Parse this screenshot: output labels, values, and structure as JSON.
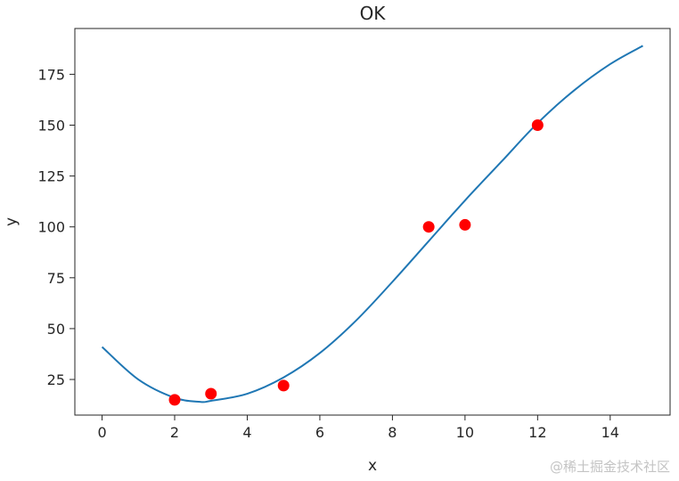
{
  "chart_data": {
    "type": "scatter",
    "title": "OK",
    "xlabel": "x",
    "ylabel": "y",
    "xlim": [
      -0.75,
      15.65
    ],
    "ylim": [
      7.5,
      197.5
    ],
    "xticks": [
      0,
      2,
      4,
      6,
      8,
      10,
      12,
      14
    ],
    "yticks": [
      25,
      50,
      75,
      100,
      125,
      150,
      175
    ],
    "grid": false,
    "series": [
      {
        "kind": "scatter",
        "color": "#ff0000",
        "x": [
          2,
          3,
          5,
          9,
          10,
          12
        ],
        "y": [
          15,
          18,
          22,
          100,
          101,
          150
        ]
      },
      {
        "kind": "line",
        "color": "#1f77b4",
        "x": [
          0,
          1,
          2,
          2.7,
          3,
          4,
          5,
          6,
          7,
          8,
          9,
          10,
          11,
          12,
          13,
          14,
          14.9
        ],
        "y": [
          41,
          25,
          16,
          14,
          14.5,
          18,
          26,
          38,
          54,
          73,
          93,
          113,
          132,
          151,
          167,
          180,
          189
        ]
      }
    ]
  },
  "watermark": "@稀土掘金技术社区"
}
